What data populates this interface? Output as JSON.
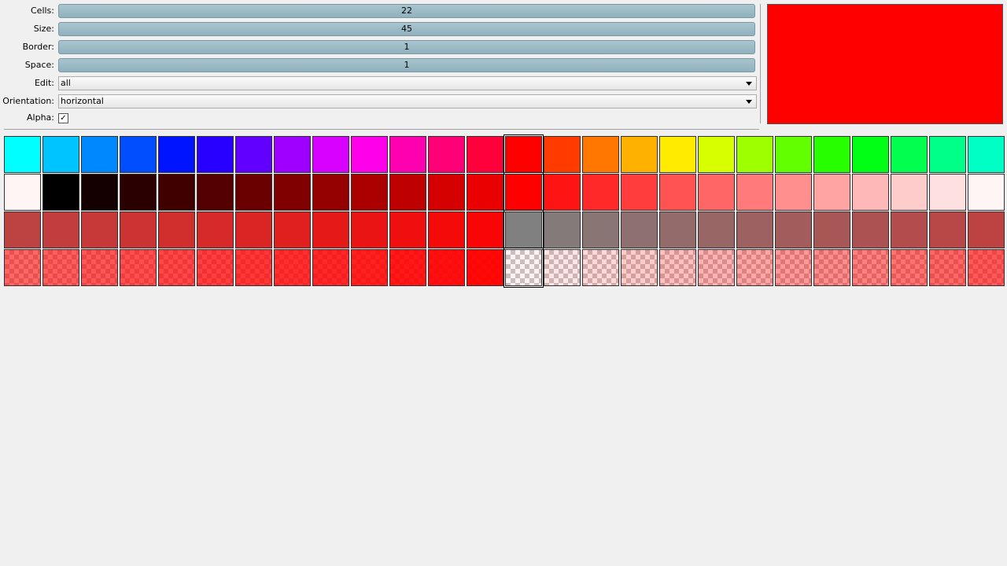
{
  "controls": {
    "sliders": [
      {
        "label": "Cells:",
        "value": 22
      },
      {
        "label": "Size:",
        "value": 45
      },
      {
        "label": "Border:",
        "value": 1
      },
      {
        "label": "Space:",
        "value": 1
      }
    ],
    "dropdowns": [
      {
        "label": "Edit:",
        "value": "all"
      },
      {
        "label": "Orientation:",
        "value": "horizontal"
      }
    ],
    "checkbox": {
      "label": "Alpha:"
    }
  }
}
